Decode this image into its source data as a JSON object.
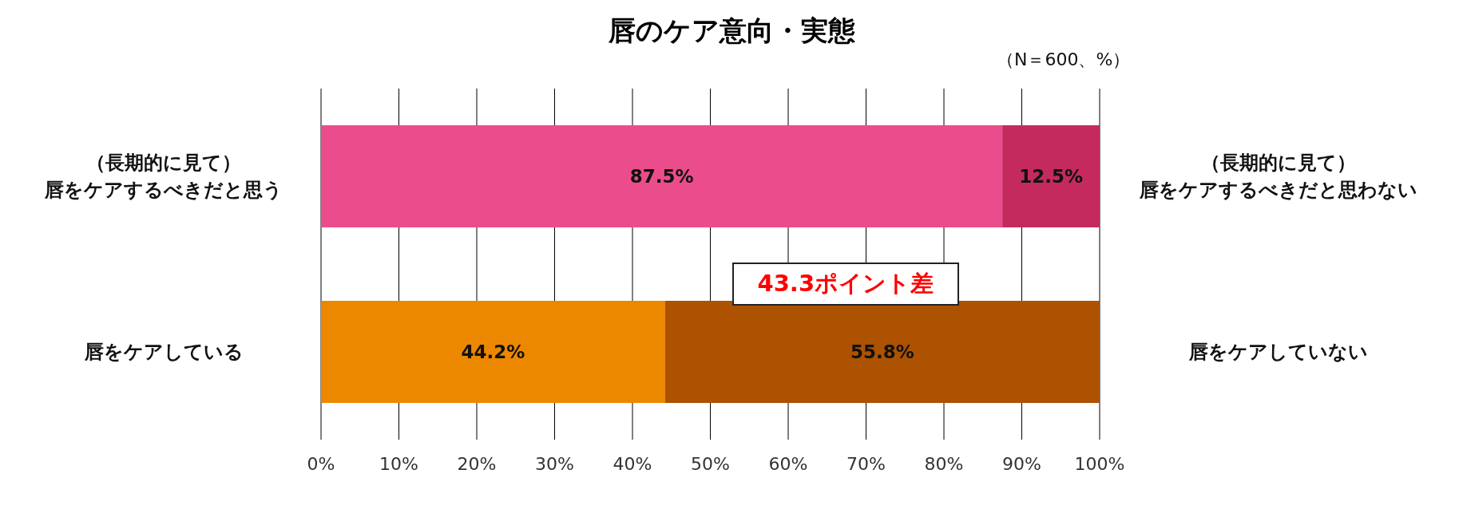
{
  "chart_data": {
    "type": "bar",
    "orientation": "horizontal",
    "stacked": true,
    "title": "唇のケア意向・実態",
    "categories": [
      "（長期的に見て）唇をケアするべきだと思う",
      "唇をケアしている"
    ],
    "series": [
      {
        "values": [
          87.5,
          44.2
        ],
        "colors": [
          "#eb4c8c",
          "#ec8800"
        ],
        "value_labels": [
          "87.5%",
          "44.2%"
        ]
      },
      {
        "values": [
          12.5,
          55.8
        ],
        "colors": [
          "#c42a5e",
          "#ad5200"
        ],
        "value_labels": [
          "12.5%",
          "55.8%"
        ]
      }
    ],
    "xlim": [
      0,
      100
    ],
    "xticks": [
      {
        "value": 0,
        "label": "0%"
      },
      {
        "value": 10,
        "label": "10%"
      },
      {
        "value": 20,
        "label": "20%"
      },
      {
        "value": 30,
        "label": "30%"
      },
      {
        "value": 40,
        "label": "40%"
      },
      {
        "value": 50,
        "label": "50%"
      },
      {
        "value": 60,
        "label": "60%"
      },
      {
        "value": 70,
        "label": "70%"
      },
      {
        "value": 80,
        "label": "80%"
      },
      {
        "value": 90,
        "label": "90%"
      },
      {
        "value": 100,
        "label": "100%"
      }
    ],
    "grid": "x",
    "legend": false,
    "annotations": [
      "（N＝600、%）",
      "43.3ポイント差",
      "（長期的に見て）唇をケアするべきだと思わない",
      "唇をケアしていない"
    ]
  }
}
